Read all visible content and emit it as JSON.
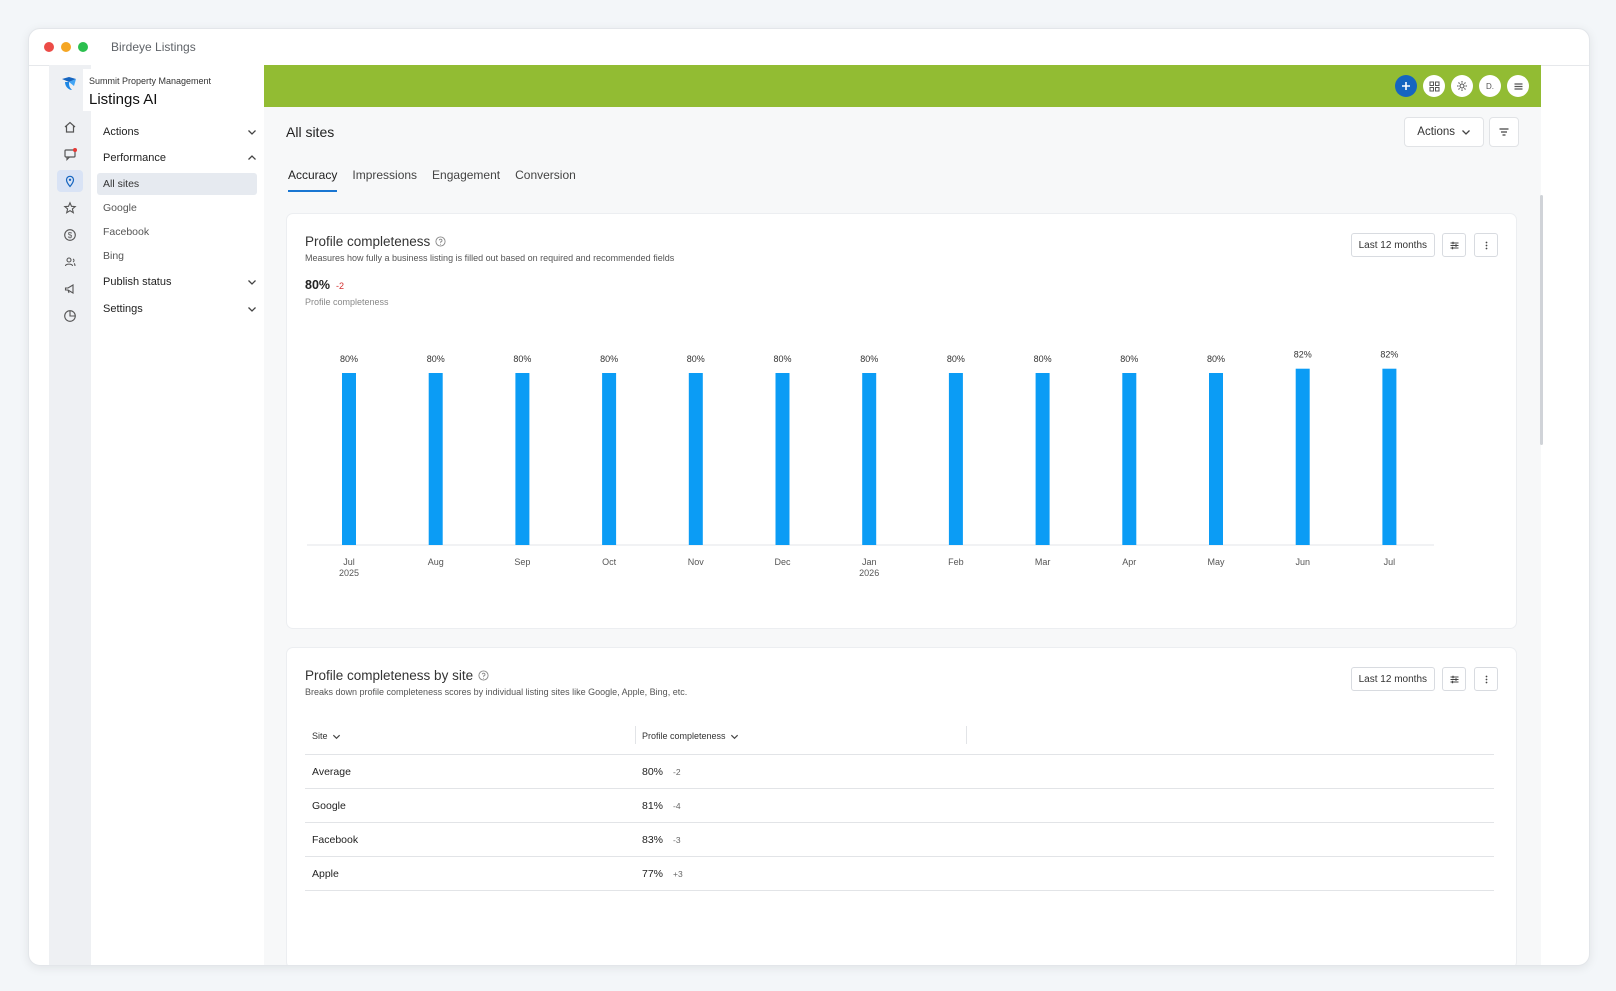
{
  "window": {
    "title": "Birdeye Listings",
    "dots": [
      "#ec4c47",
      "#f5a623",
      "#2bbf4e"
    ]
  },
  "brand": {
    "account": "Summit Property Management",
    "product": "Listings AI"
  },
  "rail_icons": [
    "home-icon",
    "messages-icon",
    "location-pin-icon",
    "star-icon",
    "dollar-icon",
    "contacts-icon",
    "megaphone-icon",
    "chart-pie-icon"
  ],
  "sidebar": {
    "actions": "Actions",
    "performance": "Performance",
    "performance_items": [
      "All sites",
      "Google",
      "Facebook",
      "Bing"
    ],
    "publish_status": "Publish status",
    "settings": "Settings"
  },
  "topbar": {
    "accent": "#92bc33",
    "avatar": "D."
  },
  "page": {
    "title": "All sites",
    "actions_label": "Actions"
  },
  "tabs": [
    "Accuracy",
    "Impressions",
    "Engagement",
    "Conversion"
  ],
  "card1": {
    "title": "Profile completeness",
    "description": "Measures how fully a business listing is filled out based on required and recommended fields",
    "period": "Last 12 months",
    "kpi_value": "80%",
    "kpi_delta": "-2",
    "kpi_label": "Profile completeness"
  },
  "chart_data": {
    "type": "bar",
    "categories": [
      "Jul 2025",
      "Aug",
      "Sep",
      "Oct",
      "Nov",
      "Dec",
      "Jan 2026",
      "Feb",
      "Mar",
      "Apr",
      "May",
      "Jun",
      "Jul"
    ],
    "tick_lines": [
      [
        "Jul",
        "2025"
      ],
      [
        "Aug"
      ],
      [
        "Sep"
      ],
      [
        "Oct"
      ],
      [
        "Nov"
      ],
      [
        "Dec"
      ],
      [
        "Jan",
        "2026"
      ],
      [
        "Feb"
      ],
      [
        "Mar"
      ],
      [
        "Apr"
      ],
      [
        "May"
      ],
      [
        "Jun"
      ],
      [
        "Jul"
      ]
    ],
    "values": [
      80,
      80,
      80,
      80,
      80,
      80,
      80,
      80,
      80,
      80,
      80,
      82,
      82
    ],
    "data_labels": [
      "80%",
      "80%",
      "80%",
      "80%",
      "80%",
      "80%",
      "80%",
      "80%",
      "80%",
      "80%",
      "80%",
      "82%",
      "82%"
    ],
    "color": "#0b9cf5",
    "ylim": [
      0,
      100
    ],
    "grid": false,
    "title": "",
    "xlabel": "",
    "ylabel": ""
  },
  "card2": {
    "title": "Profile completeness by site",
    "description": "Breaks down profile completeness scores by individual listing sites like Google, Apple, Bing, etc.",
    "period": "Last 12 months",
    "col_site": "Site",
    "col_score": "Profile completeness",
    "rows": [
      {
        "site": "Average",
        "score": "80%",
        "delta": "-2"
      },
      {
        "site": "Google",
        "score": "81%",
        "delta": "-4"
      },
      {
        "site": "Facebook",
        "score": "83%",
        "delta": "-3"
      },
      {
        "site": "Apple",
        "score": "77%",
        "delta": "+3"
      }
    ]
  }
}
